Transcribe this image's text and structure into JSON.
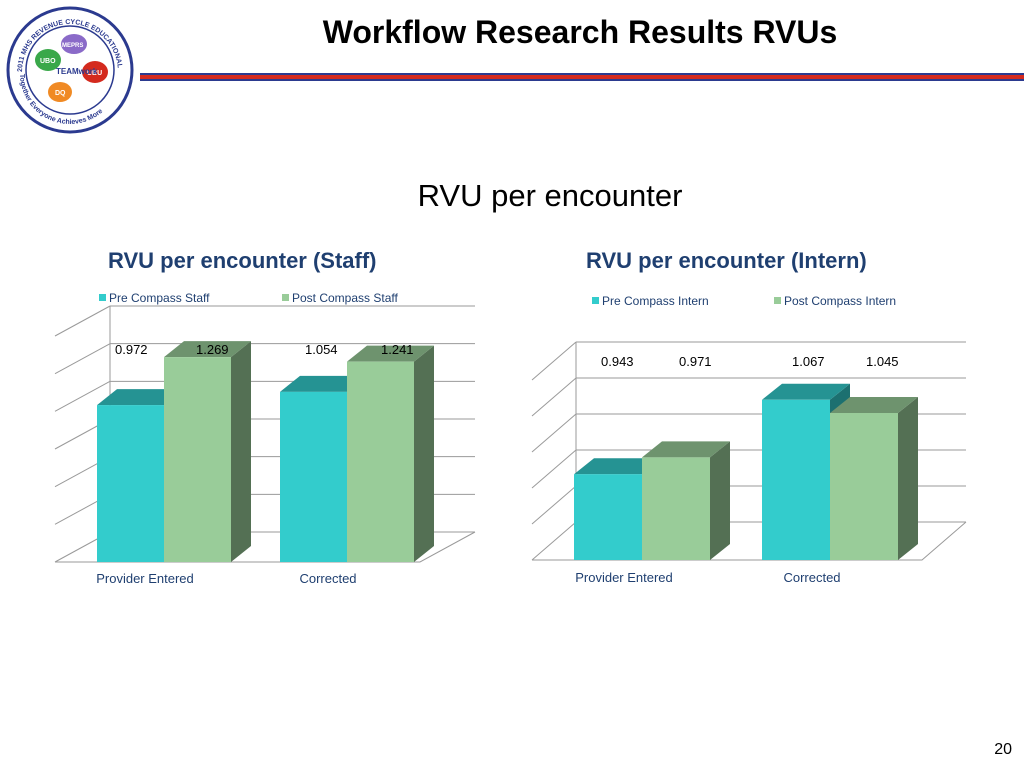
{
  "slide": {
    "title": "Workflow Research Results RVUs",
    "subtitle": "RVU per encounter",
    "page_number": "20",
    "colors": {
      "rule_red": "#d42a1e",
      "rule_blue": "#2b3a8f",
      "title_blue": "#1f3f70"
    }
  },
  "logo": {
    "ring_top": "2011 MHS REVENUE CYCLE EDUCATIONAL CONFERENCE",
    "ring_bottom": "Together Everyone Achieves More",
    "center": "TEAMwork",
    "hands": [
      "UBO",
      "MEPRS",
      "UBU",
      "DQ"
    ]
  },
  "chart_data": [
    {
      "type": "bar",
      "title": "RVU per encounter (Staff)",
      "categories": [
        "Provider Entered",
        "Corrected"
      ],
      "series": [
        {
          "name": "Pre Compass Staff",
          "values": [
            0.972,
            1.054
          ],
          "color": "#33cccc"
        },
        {
          "name": "Post Compass Staff",
          "values": [
            1.269,
            1.241
          ],
          "color": "#99cc99"
        }
      ],
      "data_labels": [
        "0.972",
        "1.269",
        "1.054",
        "1.241"
      ],
      "ylim": [
        0,
        1.4
      ],
      "gridlines": 7,
      "legend": "top",
      "style": "3d-clustered-column"
    },
    {
      "type": "bar",
      "title": "RVU per encounter (Intern)",
      "categories": [
        "Provider Entered",
        "Corrected"
      ],
      "series": [
        {
          "name": "Pre Compass Intern",
          "values": [
            0.943,
            1.067
          ],
          "color": "#33cccc"
        },
        {
          "name": "Post Compass Intern",
          "values": [
            0.971,
            1.045
          ],
          "color": "#99cc99"
        }
      ],
      "data_labels": [
        "0.943",
        "0.971",
        "1.067",
        "1.045"
      ],
      "ylim": [
        0.8,
        1.1
      ],
      "gridlines": 6,
      "legend": "top",
      "style": "3d-clustered-column"
    }
  ]
}
